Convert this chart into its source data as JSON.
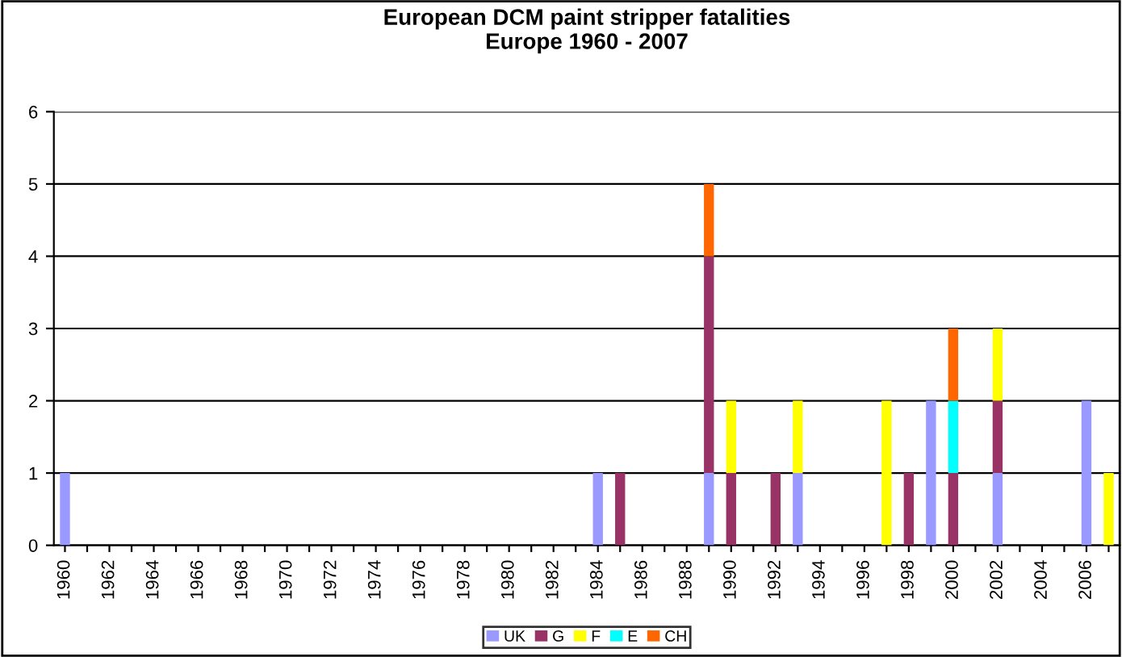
{
  "chart_data": {
    "type": "bar",
    "title": "European DCM paint stripper fatalities\nEurope 1960 - 2007",
    "stacked": true,
    "categories": [
      "1960",
      null,
      "1962",
      null,
      "1964",
      null,
      "1966",
      null,
      "1968",
      null,
      "1970",
      null,
      "1972",
      null,
      "1974",
      null,
      "1976",
      null,
      "1978",
      null,
      "1980",
      null,
      "1982",
      null,
      "1984",
      null,
      "1986",
      null,
      "1988",
      null,
      "1990",
      null,
      "1992",
      null,
      "1994",
      null,
      "1996",
      null,
      "1998",
      null,
      "2000",
      null,
      "2002",
      null,
      "2004",
      null,
      "2006",
      null
    ],
    "series": [
      {
        "name": "UK",
        "color": "#9999ff",
        "values": [
          1,
          0,
          0,
          0,
          0,
          0,
          0,
          0,
          0,
          0,
          0,
          0,
          0,
          0,
          0,
          0,
          0,
          0,
          0,
          0,
          0,
          0,
          0,
          0,
          1,
          0,
          0,
          0,
          0,
          1,
          0,
          0,
          0,
          1,
          0,
          0,
          0,
          0,
          0,
          2,
          0,
          0,
          1,
          0,
          0,
          0,
          2,
          0
        ]
      },
      {
        "name": "G",
        "color": "#993366",
        "values": [
          0,
          0,
          0,
          0,
          0,
          0,
          0,
          0,
          0,
          0,
          0,
          0,
          0,
          0,
          0,
          0,
          0,
          0,
          0,
          0,
          0,
          0,
          0,
          0,
          0,
          1,
          0,
          0,
          0,
          3,
          1,
          0,
          1,
          0,
          0,
          0,
          0,
          0,
          1,
          0,
          1,
          0,
          1,
          0,
          0,
          0,
          0,
          0
        ]
      },
      {
        "name": "F",
        "color": "#ffff00",
        "values": [
          0,
          0,
          0,
          0,
          0,
          0,
          0,
          0,
          0,
          0,
          0,
          0,
          0,
          0,
          0,
          0,
          0,
          0,
          0,
          0,
          0,
          0,
          0,
          0,
          0,
          0,
          0,
          0,
          0,
          0,
          1,
          0,
          0,
          1,
          0,
          0,
          0,
          2,
          0,
          0,
          0,
          0,
          1,
          0,
          0,
          0,
          0,
          1
        ]
      },
      {
        "name": "E",
        "color": "#00ffff",
        "values": [
          0,
          0,
          0,
          0,
          0,
          0,
          0,
          0,
          0,
          0,
          0,
          0,
          0,
          0,
          0,
          0,
          0,
          0,
          0,
          0,
          0,
          0,
          0,
          0,
          0,
          0,
          0,
          0,
          0,
          0,
          0,
          0,
          0,
          0,
          0,
          0,
          0,
          0,
          0,
          0,
          1,
          0,
          0,
          0,
          0,
          0,
          0,
          0
        ]
      },
      {
        "name": "CH",
        "color": "#ff6600",
        "values": [
          0,
          0,
          0,
          0,
          0,
          0,
          0,
          0,
          0,
          0,
          0,
          0,
          0,
          0,
          0,
          0,
          0,
          0,
          0,
          0,
          0,
          0,
          0,
          0,
          0,
          0,
          0,
          0,
          0,
          1,
          0,
          0,
          0,
          0,
          0,
          0,
          0,
          0,
          0,
          0,
          1,
          0,
          0,
          0,
          0,
          0,
          0,
          0
        ]
      }
    ],
    "ylim": [
      0,
      6
    ],
    "yticks": [
      0,
      1,
      2,
      3,
      4,
      5,
      6
    ],
    "grid": "y",
    "legend": "bottom"
  }
}
